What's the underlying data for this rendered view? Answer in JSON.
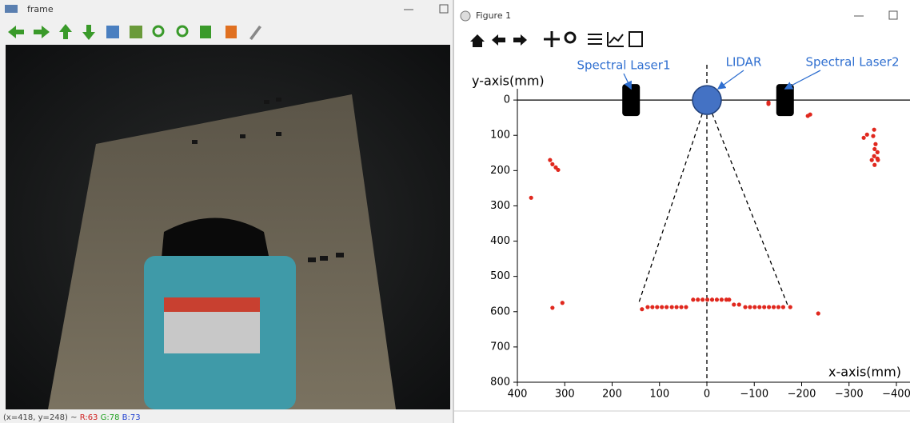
{
  "left_window": {
    "title": "frame",
    "status": {
      "position": "(x=418, y=248) ~",
      "r": "R:63",
      "g": "G:78",
      "b": "B:73"
    }
  },
  "right_window": {
    "title": "Figure 1"
  },
  "chart_data": {
    "type": "scatter",
    "ylabel": "y-axis(mm)",
    "xlabel": "x-axis(mm)",
    "xlim": [
      400,
      -400
    ],
    "ylim": [
      800,
      -100
    ],
    "xticks": [
      400,
      300,
      200,
      100,
      0,
      {
        "value": -100,
        "label": "−100"
      },
      {
        "value": -200,
        "label": "−200"
      },
      {
        "value": -300,
        "label": "−300"
      },
      {
        "value": -400,
        "label": "−400"
      }
    ],
    "yticks": [
      0,
      100,
      200,
      300,
      400,
      500,
      600,
      700,
      800
    ],
    "color": "#e0281e",
    "x": [
      331,
      326,
      319,
      314,
      371,
      326,
      305,
      137,
      125,
      115,
      105,
      95,
      85,
      74,
      64,
      54,
      44,
      29,
      19,
      9,
      -1,
      -11,
      -21,
      -31,
      -41,
      -47,
      -57,
      -68,
      -81,
      -91,
      -101,
      -111,
      -121,
      -131,
      -141,
      -151,
      -161,
      -176,
      -235,
      -130,
      -130,
      -213,
      -218,
      -331,
      -338,
      -353,
      -351,
      -356,
      -354,
      -360,
      -353,
      -361,
      -348,
      -354,
      -360
    ],
    "values": [
      170,
      182,
      191,
      198,
      277,
      589,
      575,
      593,
      587,
      587,
      587,
      587,
      587,
      587,
      587,
      587,
      587,
      566,
      566,
      566,
      566,
      566,
      566,
      566,
      566,
      566,
      580,
      580,
      587,
      587,
      587,
      587,
      587,
      587,
      587,
      587,
      587,
      587,
      605,
      7,
      11,
      45,
      41,
      107,
      98,
      84,
      102,
      125,
      139,
      148,
      159,
      170,
      170,
      184,
      166
    ],
    "hline": 0,
    "vline": 0,
    "cone_lines": [
      {
        "x": [
          0,
          145
        ],
        "y": [
          0,
          580
        ]
      },
      {
        "x": [
          0,
          -170
        ],
        "y": [
          0,
          580
        ]
      }
    ],
    "annotations": [
      {
        "text": "Spectral Laser1",
        "x": 160,
        "y": 0,
        "shape": "rect"
      },
      {
        "text": "LIDAR",
        "x": 0,
        "y": 0,
        "shape": "circle"
      },
      {
        "text": "Spectral Laser2",
        "x": -165,
        "y": 0,
        "shape": "rect"
      }
    ]
  }
}
